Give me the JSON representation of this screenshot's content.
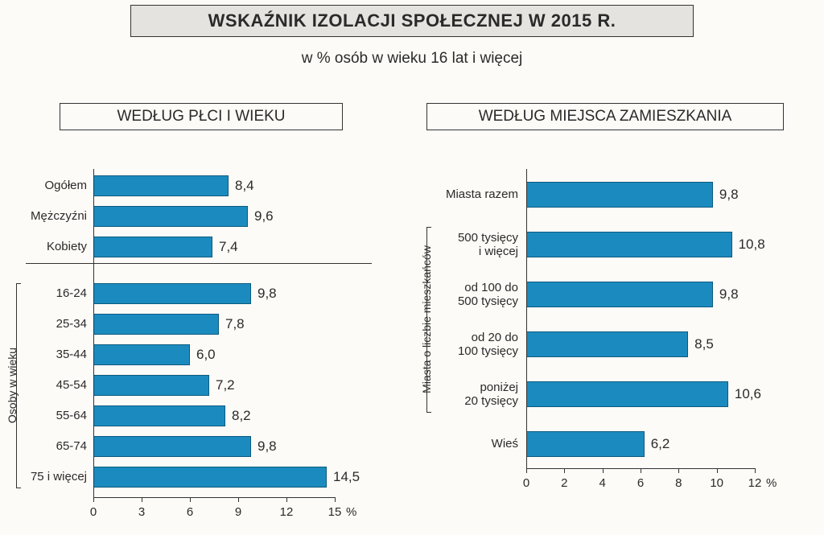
{
  "title": "WSKAŹNIK IZOLACJI SPOŁECZNEJ W 2015 R.",
  "subtitle": "w % osób w wieku 16 lat i więcej",
  "bar_fill": "#1b8bbf",
  "bar_stroke": "#0d5a80",
  "background": "#fcfbf7",
  "left": {
    "title": "WEDŁUG PŁCI I WIEKU",
    "xmax": 15,
    "xticks": [
      0,
      3,
      6,
      9,
      12,
      15
    ],
    "axis_unit": "%",
    "group_bracket_label": "Osoby w wieku",
    "groups": [
      {
        "items": [
          {
            "label": "Ogółem",
            "value": 8.4,
            "value_text": "8,4"
          },
          {
            "label": "Mężczyźni",
            "value": 9.6,
            "value_text": "9,6"
          },
          {
            "label": "Kobiety",
            "value": 7.4,
            "value_text": "7,4"
          }
        ]
      },
      {
        "items": [
          {
            "label": "16-24",
            "value": 9.8,
            "value_text": "9,8"
          },
          {
            "label": "25-34",
            "value": 7.8,
            "value_text": "7,8"
          },
          {
            "label": "35-44",
            "value": 6.0,
            "value_text": "6,0"
          },
          {
            "label": "45-54",
            "value": 7.2,
            "value_text": "7,2"
          },
          {
            "label": "55-64",
            "value": 8.2,
            "value_text": "8,2"
          },
          {
            "label": "65-74",
            "value": 9.8,
            "value_text": "9,8"
          },
          {
            "label": "75 i więcej",
            "value": 14.5,
            "value_text": "14,5"
          }
        ]
      }
    ]
  },
  "right": {
    "title": "WEDŁUG MIEJSCA ZAMIESZKANIA",
    "xmax": 12,
    "xticks": [
      0,
      2,
      4,
      6,
      8,
      10,
      12
    ],
    "axis_unit": "%",
    "group_bracket_label": "Miasta o liczbie mieszkańców",
    "items": [
      {
        "label": "Miasta razem",
        "value": 9.8,
        "value_text": "9,8",
        "in_bracket": false
      },
      {
        "label": "500 tysięcy\ni więcej",
        "value": 10.8,
        "value_text": "10,8",
        "in_bracket": true
      },
      {
        "label": "od 100 do\n500 tysięcy",
        "value": 9.8,
        "value_text": "9,8",
        "in_bracket": true
      },
      {
        "label": "od 20 do\n100 tysięcy",
        "value": 8.5,
        "value_text": "8,5",
        "in_bracket": true
      },
      {
        "label": "poniżej\n20 tysięcy",
        "value": 10.6,
        "value_text": "10,6",
        "in_bracket": true
      },
      {
        "label": "Wieś",
        "value": 6.2,
        "value_text": "6,2",
        "in_bracket": false
      }
    ]
  }
}
